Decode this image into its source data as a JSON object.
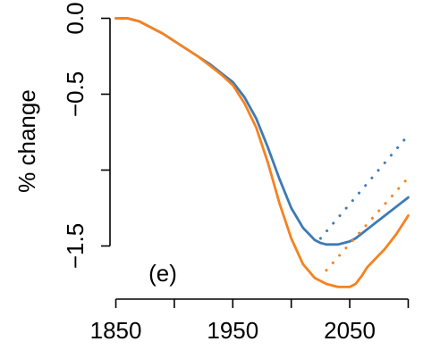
{
  "chart_data": {
    "type": "line",
    "ylabel": "% change",
    "annotation": "(e)",
    "xlim": [
      1845,
      2105
    ],
    "ylim": [
      -1.85,
      0.05
    ],
    "x_ticks": [
      1850,
      1900,
      1950,
      2000,
      2050,
      2100
    ],
    "x_tick_labels": [
      "1850",
      "",
      "1950",
      "",
      "2050",
      ""
    ],
    "y_ticks": [
      0.0,
      -0.5,
      -1.0,
      -1.5
    ],
    "y_tick_labels": [
      "0.0",
      "−0.5",
      "",
      "−1.5"
    ],
    "colors": {
      "blue": "#3d7ab5",
      "orange": "#f5821f"
    },
    "series": [
      {
        "color": "#3d7ab5",
        "style": "solid",
        "x": [
          1850,
          1860,
          1870,
          1880,
          1890,
          1900,
          1910,
          1920,
          1930,
          1940,
          1950,
          1960,
          1970,
          1980,
          1990,
          2000,
          2010,
          2020,
          2025,
          2030,
          2035,
          2040,
          2045,
          2050,
          2055,
          2060,
          2070,
          2080,
          2090,
          2100
        ],
        "values": [
          0.0,
          0.0,
          -0.02,
          -0.06,
          -0.1,
          -0.15,
          -0.2,
          -0.25,
          -0.3,
          -0.36,
          -0.42,
          -0.52,
          -0.66,
          -0.85,
          -1.06,
          -1.25,
          -1.38,
          -1.46,
          -1.48,
          -1.49,
          -1.49,
          -1.49,
          -1.48,
          -1.47,
          -1.45,
          -1.42,
          -1.36,
          -1.3,
          -1.24,
          -1.18
        ]
      },
      {
        "color": "#f5821f",
        "style": "solid",
        "x": [
          1850,
          1860,
          1870,
          1880,
          1890,
          1900,
          1910,
          1920,
          1930,
          1940,
          1950,
          1960,
          1970,
          1980,
          1990,
          2000,
          2010,
          2020,
          2030,
          2040,
          2045,
          2050,
          2055,
          2060,
          2065,
          2070,
          2080,
          2090,
          2100
        ],
        "values": [
          0.0,
          0.0,
          -0.02,
          -0.06,
          -0.1,
          -0.15,
          -0.2,
          -0.25,
          -0.31,
          -0.37,
          -0.44,
          -0.56,
          -0.72,
          -0.95,
          -1.22,
          -1.45,
          -1.62,
          -1.71,
          -1.75,
          -1.77,
          -1.77,
          -1.77,
          -1.75,
          -1.7,
          -1.64,
          -1.6,
          -1.52,
          -1.42,
          -1.3
        ]
      },
      {
        "color": "#3d7ab5",
        "style": "dotted",
        "x": [
          2025,
          2100
        ],
        "values": [
          -1.45,
          -0.77
        ]
      },
      {
        "color": "#f5821f",
        "style": "dotted",
        "x": [
          2030,
          2100
        ],
        "values": [
          -1.66,
          -1.05
        ]
      }
    ]
  }
}
